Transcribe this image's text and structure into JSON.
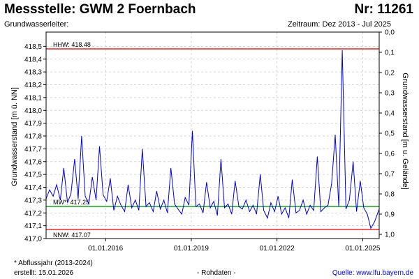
{
  "header": {
    "title": "Messstelle: GWM 2 Foernbach",
    "number": "Nr: 11261",
    "aquifer": "Grundwasserleiter:",
    "period": "Zeitraum: Dez 2013 - Jul 2025"
  },
  "footer": {
    "footnote": "* Abflussjahr (2013-2024)",
    "created": "erstellt:  15.01.2026",
    "datatype": "- Rohdaten -",
    "source": "Quelle: www.lfu.bayern.de"
  },
  "colors": {
    "series": "#0000dd",
    "hhw": "#ee0000",
    "nnw": "#ee0000",
    "mw": "#00a000",
    "grid": "#c8c8c8",
    "frame": "#000000"
  },
  "chart_data": {
    "type": "line",
    "ylabel": "Grundwasserstand [m ü. NN]",
    "ylabel_right": "Grundwasserstand [m u. Gelände]",
    "ylim": [
      417.0,
      418.6
    ],
    "ylim_right": [
      0.0,
      1.0
    ],
    "xlim": [
      "2013-12-01",
      "2025-07-31"
    ],
    "yticks": [
      "417,0",
      "417,1",
      "417,2",
      "417,3",
      "417,4",
      "417,5",
      "417,6",
      "417,7",
      "417,8",
      "417,9",
      "418,0",
      "418,1",
      "418,2",
      "418,3",
      "418,4",
      "418,5"
    ],
    "yticks_right": [
      "0,0",
      "0,1",
      "0,2",
      "0,3",
      "0,4",
      "0,5",
      "0,6",
      "0,7",
      "0,8",
      "0,9",
      "1,0"
    ],
    "xticks": [
      "01.01.2016",
      "01.01.2019",
      "01.01.2022",
      "01.01.2025"
    ],
    "grid": true,
    "reference_lines": [
      {
        "label": "HHW: 418.48",
        "value": 418.48,
        "kind": "hhw"
      },
      {
        "label": "MW*: 417.25",
        "value": 417.25,
        "kind": "mw"
      },
      {
        "label": "NNW: 417.07",
        "value": 417.07,
        "kind": "nnw"
      }
    ],
    "series": [
      {
        "x": [
          "2013-12-01",
          "2014-01-15",
          "2014-03-01",
          "2014-04-15",
          "2014-06-01",
          "2014-07-15",
          "2014-09-01",
          "2014-10-15",
          "2014-12-01",
          "2015-01-15",
          "2015-03-01",
          "2015-04-15",
          "2015-06-01",
          "2015-07-15",
          "2015-09-01",
          "2015-10-15",
          "2015-12-01",
          "2016-01-15",
          "2016-03-01",
          "2016-04-15",
          "2016-06-01",
          "2016-07-15",
          "2016-09-01",
          "2016-10-15",
          "2016-12-01",
          "2017-01-15",
          "2017-03-01",
          "2017-04-15",
          "2017-06-01",
          "2017-07-15",
          "2017-09-01",
          "2017-10-15",
          "2017-12-01",
          "2018-01-15",
          "2018-03-01",
          "2018-04-15",
          "2018-06-01",
          "2018-07-15",
          "2018-09-01",
          "2018-10-15",
          "2018-12-01",
          "2019-01-15",
          "2019-03-01",
          "2019-04-15",
          "2019-06-01",
          "2019-07-15",
          "2019-09-01",
          "2019-10-15",
          "2019-12-01",
          "2020-01-15",
          "2020-03-01",
          "2020-04-15",
          "2020-06-01",
          "2020-07-15",
          "2020-09-01",
          "2020-10-15",
          "2020-12-01",
          "2021-01-15",
          "2021-03-01",
          "2021-04-15",
          "2021-06-01",
          "2021-07-15",
          "2021-09-01",
          "2021-10-15",
          "2021-12-01",
          "2022-01-15",
          "2022-03-01",
          "2022-04-15",
          "2022-06-01",
          "2022-07-15",
          "2022-09-01",
          "2022-10-15",
          "2022-12-01",
          "2023-01-15",
          "2023-03-01",
          "2023-04-15",
          "2023-06-01",
          "2023-07-15",
          "2023-09-01",
          "2023-10-15",
          "2023-12-01",
          "2024-01-15",
          "2024-03-01",
          "2024-04-15",
          "2024-06-01",
          "2024-07-15",
          "2024-09-01",
          "2024-10-15",
          "2024-12-01",
          "2025-01-15",
          "2025-03-01",
          "2025-04-15",
          "2025-06-01",
          "2025-07-31"
        ],
        "values": [
          417.31,
          417.38,
          417.33,
          417.42,
          417.3,
          417.55,
          417.28,
          417.35,
          417.62,
          417.31,
          417.8,
          417.33,
          417.27,
          417.48,
          417.3,
          417.72,
          417.34,
          417.29,
          417.47,
          417.22,
          417.33,
          417.26,
          417.21,
          417.42,
          417.24,
          417.3,
          417.22,
          417.7,
          417.25,
          417.28,
          417.21,
          417.37,
          417.23,
          417.3,
          417.2,
          417.55,
          417.27,
          417.23,
          417.19,
          417.32,
          417.26,
          417.84,
          417.25,
          417.27,
          417.2,
          417.44,
          417.24,
          417.29,
          417.18,
          417.62,
          417.24,
          417.27,
          417.19,
          417.45,
          417.25,
          417.23,
          417.3,
          417.21,
          417.26,
          417.19,
          417.5,
          417.22,
          417.16,
          417.28,
          417.21,
          417.33,
          417.19,
          417.24,
          417.16,
          417.46,
          417.2,
          417.22,
          417.3,
          417.19,
          417.26,
          417.22,
          417.64,
          417.21,
          417.24,
          417.26,
          417.43,
          417.81,
          417.25,
          418.47,
          417.23,
          417.3,
          417.6,
          417.21,
          417.45,
          417.24,
          417.19,
          417.08,
          417.13,
          417.23
        ]
      }
    ]
  }
}
